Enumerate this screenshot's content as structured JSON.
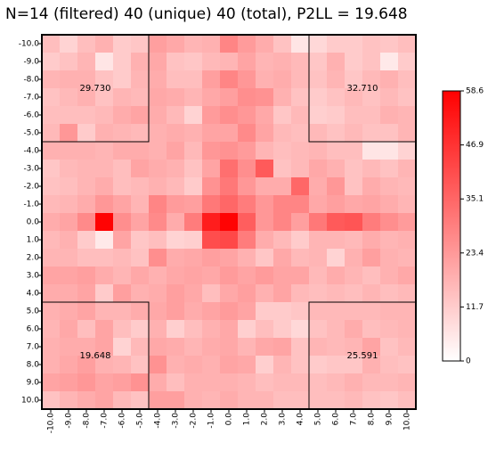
{
  "chart_data": {
    "type": "heatmap",
    "title": "N=14 (filtered) 40 (unique) 40 (total), P2LL = 19.648",
    "x_ticks": [
      "-10.0",
      "-9.0",
      "-8.0",
      "-7.0",
      "-6.0",
      "-5.0",
      "-4.0",
      "-3.0",
      "-2.0",
      "-1.0",
      "0.0",
      "1.0",
      "2.0",
      "3.0",
      "4.0",
      "5.0",
      "6.0",
      "7.0",
      "8.0",
      "9.0",
      "10.0"
    ],
    "y_ticks": [
      "-10.0",
      "-9.0",
      "-8.0",
      "-7.0",
      "-6.0",
      "-5.0",
      "-4.0",
      "-3.0",
      "-2.0",
      "-1.0",
      "0.0",
      "1.0",
      "2.0",
      "3.0",
      "4.0",
      "5.0",
      "6.0",
      "7.0",
      "8.0",
      "9.0",
      "10.0"
    ],
    "colorbar": {
      "min": 0,
      "max": 58.6,
      "ticks": [
        "58.6",
        "46.9",
        "35.1",
        "23.4",
        "11.7",
        "0"
      ],
      "low_color": "#ffffff",
      "high_color": "#ff0000"
    },
    "quadrant_labels": [
      {
        "quadrant": "top-left",
        "text": "29.730"
      },
      {
        "quadrant": "top-right",
        "text": "32.710"
      },
      {
        "quadrant": "bottom-left",
        "text": "19.648"
      },
      {
        "quadrant": "bottom-right",
        "text": "25.591"
      }
    ],
    "values": [
      [
        15,
        10,
        15,
        18,
        12,
        13,
        22,
        20,
        17,
        18,
        28,
        23,
        19,
        14,
        6,
        9,
        12,
        12,
        14,
        13,
        15
      ],
      [
        12,
        14,
        17,
        6,
        12,
        18,
        20,
        14,
        13,
        16,
        17,
        21,
        17,
        18,
        16,
        13,
        18,
        12,
        14,
        5,
        12
      ],
      [
        17,
        18,
        18,
        14,
        12,
        17,
        19,
        15,
        15,
        22,
        28,
        24,
        18,
        19,
        16,
        14,
        17,
        13,
        16,
        18,
        15
      ],
      [
        14,
        16,
        18,
        14,
        17,
        16,
        20,
        19,
        17,
        20,
        22,
        26,
        25,
        18,
        14,
        12,
        14,
        16,
        14,
        16,
        14
      ],
      [
        15,
        15,
        15,
        16,
        19,
        21,
        19,
        16,
        10,
        23,
        26,
        24,
        20,
        13,
        16,
        11,
        12,
        15,
        15,
        18,
        17
      ],
      [
        16,
        24,
        12,
        18,
        17,
        16,
        18,
        19,
        18,
        21,
        21,
        27,
        21,
        16,
        15,
        16,
        14,
        16,
        14,
        14,
        17
      ],
      [
        18,
        18,
        18,
        17,
        19,
        19,
        18,
        21,
        16,
        24,
        25,
        23,
        17,
        15,
        16,
        17,
        15,
        15,
        6,
        6,
        10
      ],
      [
        13,
        16,
        17,
        17,
        15,
        21,
        19,
        18,
        14,
        21,
        33,
        26,
        38,
        14,
        16,
        20,
        18,
        14,
        16,
        14,
        17
      ],
      [
        14,
        15,
        17,
        19,
        15,
        16,
        18,
        16,
        12,
        25,
        31,
        24,
        19,
        19,
        35,
        19,
        24,
        14,
        19,
        17,
        16
      ],
      [
        16,
        17,
        19,
        24,
        21,
        17,
        28,
        23,
        22,
        31,
        35,
        30,
        24,
        28,
        28,
        20,
        22,
        20,
        21,
        19,
        17
      ],
      [
        19,
        21,
        27,
        58,
        26,
        21,
        27,
        19,
        30,
        52,
        58,
        37,
        24,
        28,
        22,
        31,
        38,
        39,
        30,
        26,
        23
      ],
      [
        16,
        18,
        12,
        5,
        21,
        13,
        15,
        10,
        11,
        41,
        42,
        30,
        19,
        16,
        12,
        17,
        17,
        16,
        19,
        17,
        18
      ],
      [
        17,
        17,
        15,
        15,
        16,
        14,
        26,
        19,
        20,
        22,
        21,
        18,
        13,
        20,
        16,
        17,
        10,
        18,
        22,
        18,
        17
      ],
      [
        21,
        21,
        22,
        19,
        17,
        20,
        18,
        20,
        21,
        20,
        23,
        21,
        23,
        21,
        21,
        16,
        19,
        17,
        15,
        18,
        20
      ],
      [
        19,
        19,
        21,
        12,
        22,
        18,
        19,
        22,
        20,
        15,
        20,
        22,
        18,
        21,
        16,
        15,
        16,
        15,
        17,
        15,
        16
      ],
      [
        18,
        19,
        21,
        17,
        17,
        19,
        20,
        22,
        19,
        21,
        23,
        21,
        12,
        12,
        13,
        16,
        16,
        16,
        16,
        17,
        17
      ],
      [
        17,
        20,
        15,
        21,
        15,
        12,
        18,
        11,
        15,
        18,
        20,
        11,
        15,
        12,
        9,
        14,
        16,
        19,
        15,
        16,
        17
      ],
      [
        18,
        19,
        19,
        21,
        10,
        16,
        20,
        19,
        17,
        19,
        20,
        17,
        20,
        21,
        14,
        17,
        16,
        17,
        21,
        14,
        16
      ],
      [
        18,
        20,
        22,
        18,
        17,
        14,
        25,
        18,
        19,
        18,
        21,
        20,
        11,
        17,
        14,
        12,
        13,
        13,
        18,
        15,
        14
      ],
      [
        21,
        22,
        24,
        21,
        22,
        25,
        19,
        15,
        18,
        18,
        18,
        17,
        15,
        16,
        16,
        15,
        16,
        18,
        16,
        16,
        17
      ],
      [
        14,
        17,
        19,
        21,
        16,
        14,
        22,
        22,
        18,
        17,
        19,
        17,
        17,
        15,
        15,
        15,
        15,
        16,
        14,
        13,
        15
      ]
    ]
  }
}
